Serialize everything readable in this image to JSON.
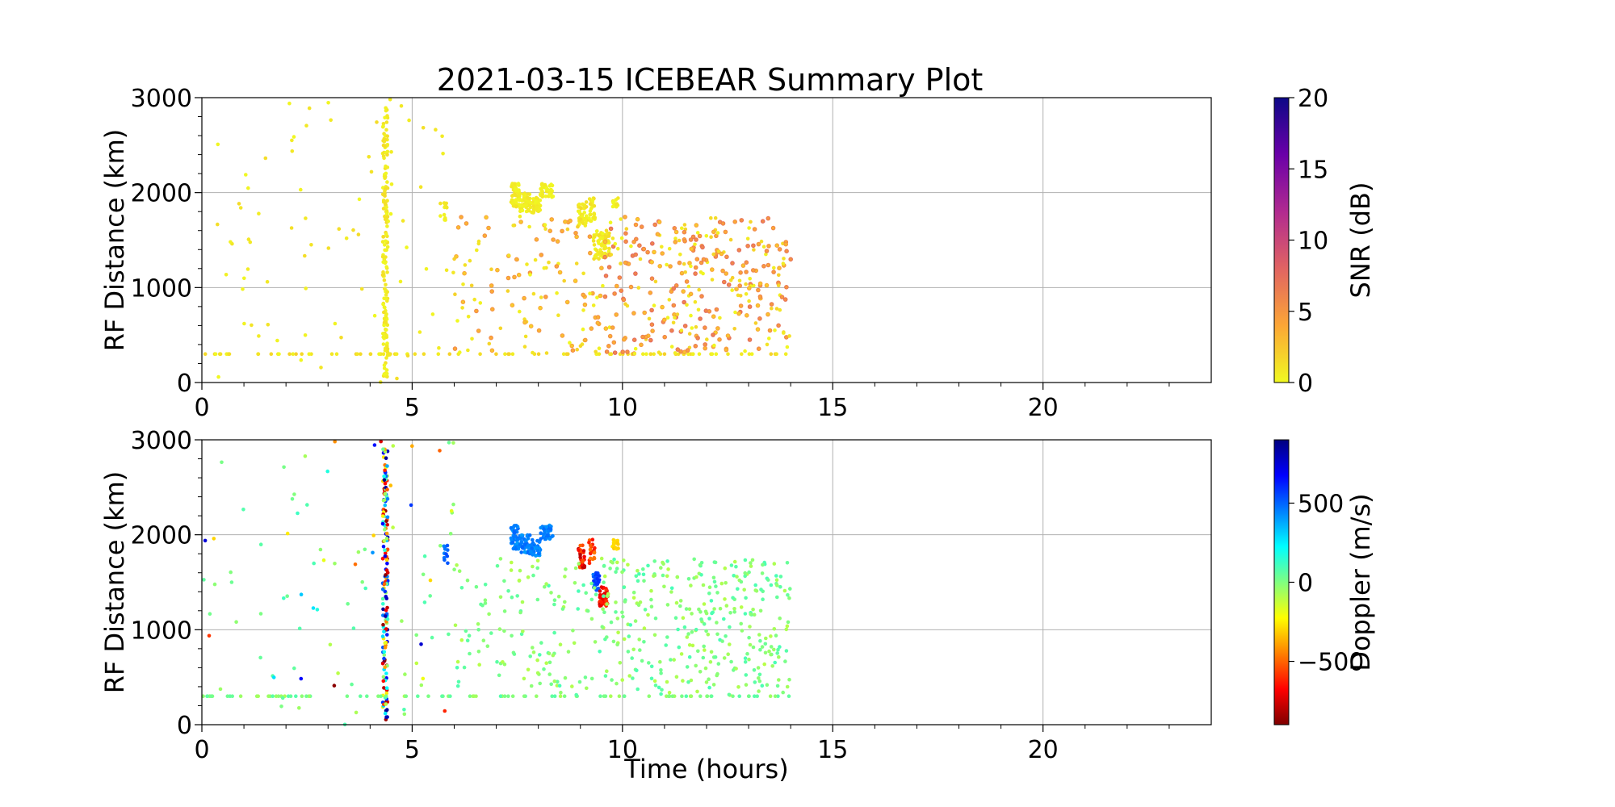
{
  "figure": {
    "title": "2021-03-15 ICEBEAR Summary Plot",
    "xlabel": "Time (hours)"
  },
  "chart_data": [
    {
      "type": "scatter",
      "panel": "top",
      "title": "2021-03-15 ICEBEAR Summary Plot",
      "xlabel": "",
      "ylabel": "RF Distance (km)",
      "xlim": [
        0,
        24
      ],
      "ylim": [
        0,
        3000
      ],
      "xticks": [
        0,
        5,
        10,
        15,
        20
      ],
      "yticks": [
        0,
        1000,
        2000,
        3000
      ],
      "grid": true,
      "colorbar": {
        "label": "SNR (dB)",
        "range": [
          0,
          20
        ],
        "ticks": [
          0,
          5,
          10,
          15,
          20
        ],
        "colormap": "plasma_r",
        "colors": [
          "#f0f921",
          "#fca636",
          "#e16462",
          "#b12a90",
          "#6a00a8",
          "#0d0887"
        ]
      },
      "point_color_default": "#f5c518",
      "clusters": [
        {
          "x": [
            4.3,
            4.42
          ],
          "y": [
            50,
            2900
          ],
          "n": 170,
          "c": [
            0,
            1.5
          ]
        },
        {
          "x": [
            7.35,
            7.55
          ],
          "y": [
            1850,
            2100
          ],
          "n": 50,
          "c": [
            0,
            1
          ]
        },
        {
          "x": [
            7.55,
            7.8
          ],
          "y": [
            1800,
            2000
          ],
          "n": 45,
          "c": [
            0,
            1
          ]
        },
        {
          "x": [
            7.8,
            8.05
          ],
          "y": [
            1780,
            1950
          ],
          "n": 40,
          "c": [
            0,
            1
          ]
        },
        {
          "x": [
            8.05,
            8.35
          ],
          "y": [
            1950,
            2100
          ],
          "n": 40,
          "c": [
            0,
            1
          ]
        },
        {
          "x": [
            8.95,
            9.15
          ],
          "y": [
            1650,
            1900
          ],
          "n": 40,
          "c": [
            0,
            1.5
          ]
        },
        {
          "x": [
            9.2,
            9.35
          ],
          "y": [
            1700,
            1950
          ],
          "n": 25,
          "c": [
            0,
            1.5
          ]
        },
        {
          "x": [
            9.3,
            9.7
          ],
          "y": [
            1300,
            1600
          ],
          "n": 70,
          "c": [
            0,
            1.5
          ]
        },
        {
          "x": [
            9.75,
            9.9
          ],
          "y": [
            1850,
            1950
          ],
          "n": 15,
          "c": [
            0,
            1
          ]
        },
        {
          "x": [
            5.75,
            5.85
          ],
          "y": [
            1700,
            1900
          ],
          "n": 12,
          "c": [
            0,
            1
          ]
        },
        {
          "x": [
            0,
            14
          ],
          "y": [
            300,
            300
          ],
          "n": 90,
          "c": [
            0,
            2
          ]
        },
        {
          "x": [
            0,
            6
          ],
          "y": [
            0,
            3000
          ],
          "n": 80,
          "c": [
            0,
            1.5
          ]
        },
        {
          "x": [
            6,
            9.5
          ],
          "y": [
            300,
            1750
          ],
          "n": 130,
          "c": [
            0,
            4
          ]
        },
        {
          "x": [
            9.5,
            14
          ],
          "y": [
            300,
            1750
          ],
          "n": 330,
          "c": [
            0,
            6
          ]
        }
      ]
    },
    {
      "type": "scatter",
      "panel": "bottom",
      "xlabel": "Time (hours)",
      "ylabel": "RF Distance (km)",
      "xlim": [
        0,
        24
      ],
      "ylim": [
        0,
        3000
      ],
      "xticks": [
        0,
        5,
        10,
        15,
        20
      ],
      "yticks": [
        0,
        1000,
        2000,
        3000
      ],
      "grid": true,
      "colorbar": {
        "label": "Doppler (m/s)",
        "range": [
          -900,
          900
        ],
        "ticks": [
          -500,
          0,
          500
        ],
        "tick_labels": [
          "−500",
          "0",
          "500"
        ],
        "colormap": "jet_r",
        "colors": [
          "#7f0000",
          "#ff0000",
          "#ff8000",
          "#ffff00",
          "#80ff80",
          "#00ffff",
          "#0080ff",
          "#0000ff",
          "#00007f"
        ]
      },
      "clusters": [
        {
          "x": [
            4.3,
            4.42
          ],
          "y": [
            50,
            2900
          ],
          "n": 170,
          "c": [
            -900,
            900
          ]
        },
        {
          "x": [
            7.35,
            7.55
          ],
          "y": [
            1850,
            2100
          ],
          "n": 50,
          "c": [
            400,
            500
          ]
        },
        {
          "x": [
            7.55,
            7.8
          ],
          "y": [
            1800,
            2000
          ],
          "n": 45,
          "c": [
            400,
            500
          ]
        },
        {
          "x": [
            7.8,
            8.05
          ],
          "y": [
            1780,
            1950
          ],
          "n": 40,
          "c": [
            400,
            500
          ]
        },
        {
          "x": [
            8.05,
            8.35
          ],
          "y": [
            1950,
            2100
          ],
          "n": 40,
          "c": [
            400,
            500
          ]
        },
        {
          "x": [
            8.95,
            9.1
          ],
          "y": [
            1650,
            1900
          ],
          "n": 30,
          "c": [
            -800,
            -500
          ]
        },
        {
          "x": [
            9.2,
            9.35
          ],
          "y": [
            1700,
            1950
          ],
          "n": 20,
          "c": [
            -700,
            -450
          ]
        },
        {
          "x": [
            9.3,
            9.45
          ],
          "y": [
            1400,
            1600
          ],
          "n": 30,
          "c": [
            450,
            600
          ]
        },
        {
          "x": [
            9.45,
            9.65
          ],
          "y": [
            1250,
            1450
          ],
          "n": 35,
          "c": [
            -750,
            -550
          ]
        },
        {
          "x": [
            9.75,
            9.9
          ],
          "y": [
            1850,
            1950
          ],
          "n": 15,
          "c": [
            -320,
            -250
          ]
        },
        {
          "x": [
            5.75,
            5.85
          ],
          "y": [
            1700,
            1900
          ],
          "n": 12,
          "c": [
            450,
            550
          ]
        },
        {
          "x": [
            0,
            14
          ],
          "y": [
            300,
            300
          ],
          "n": 90,
          "c": [
            -80,
            80
          ]
        },
        {
          "x": [
            0,
            6
          ],
          "y": [
            0,
            3000
          ],
          "n": 60,
          "c": [
            -120,
            120
          ]
        },
        {
          "x": [
            0,
            6
          ],
          "y": [
            0,
            3000
          ],
          "n": 30,
          "c": [
            -900,
            900
          ]
        },
        {
          "x": [
            6,
            9.5
          ],
          "y": [
            300,
            1750
          ],
          "n": 130,
          "c": [
            -100,
            100
          ]
        },
        {
          "x": [
            9.5,
            14
          ],
          "y": [
            300,
            1750
          ],
          "n": 330,
          "c": [
            -100,
            100
          ]
        }
      ]
    }
  ]
}
